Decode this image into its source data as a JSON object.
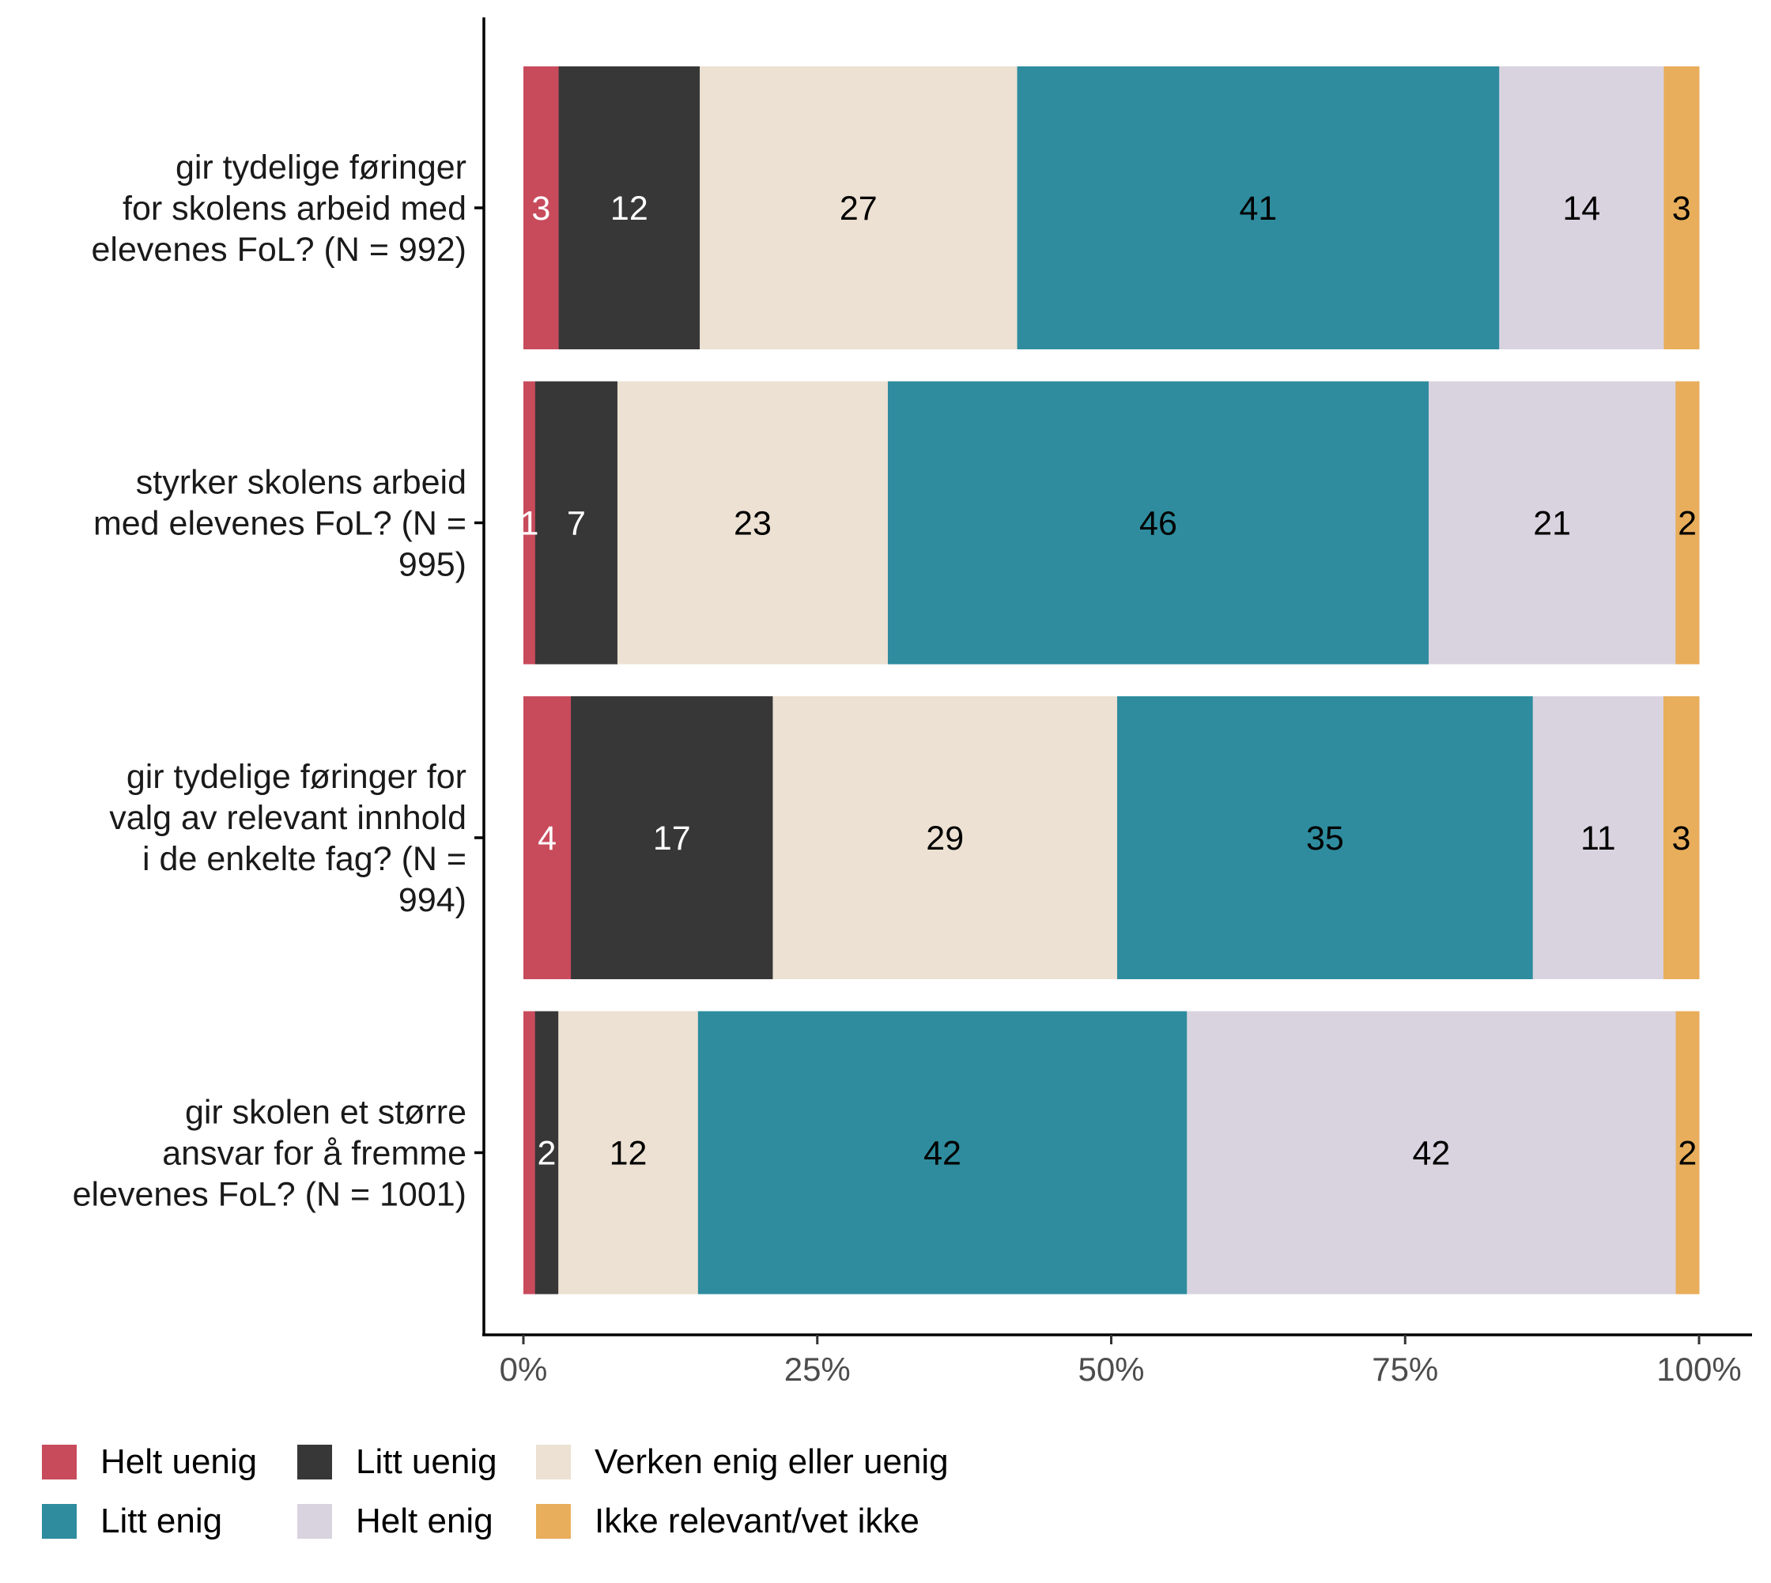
{
  "chart_data": {
    "type": "bar",
    "orientation": "horizontal",
    "stacked": true,
    "normalized": true,
    "title": "",
    "xlabel": "",
    "ylabel": "",
    "xlim": [
      0,
      100
    ],
    "x_ticks": [
      "0%",
      "25%",
      "50%",
      "75%",
      "100%"
    ],
    "x_tick_values": [
      0,
      25,
      50,
      75,
      100
    ],
    "grid": false,
    "legend_position": "bottom-left",
    "categories": [
      [
        "gir tydelige føringer",
        "for skolens arbeid med",
        "elevenes FoL? (N = 992)"
      ],
      [
        "styrker skolens arbeid",
        "med elevenes FoL? (N =",
        "995)"
      ],
      [
        "gir tydelige føringer for",
        "valg av relevant innhold",
        "i de enkelte fag? (N =",
        "994)"
      ],
      [
        "gir skolen et større",
        "ansvar for å fremme",
        "elevenes FoL? (N = 1001)"
      ]
    ],
    "series": [
      {
        "name": "Helt uenig",
        "color": "#C84B5C",
        "label_color": "#ffffff",
        "values": [
          3,
          1,
          4,
          1
        ],
        "labels": [
          "3",
          "1",
          "4",
          ""
        ]
      },
      {
        "name": "Litt uenig",
        "color": "#373737",
        "label_color": "#ffffff",
        "values": [
          12,
          7,
          17,
          2
        ],
        "labels": [
          "12",
          "7",
          "17",
          "2"
        ]
      },
      {
        "name": "Verken enig eller uenig",
        "color": "#ECE1D2",
        "label_color": "#000000",
        "values": [
          27,
          23,
          29,
          12
        ],
        "labels": [
          "27",
          "23",
          "29",
          "12"
        ]
      },
      {
        "name": "Litt enig",
        "color": "#2E8C9E",
        "label_color": "#000000",
        "values": [
          41,
          46,
          35,
          42
        ],
        "labels": [
          "41",
          "46",
          "35",
          "42"
        ]
      },
      {
        "name": "Helt enig",
        "color": "#D9D3E0",
        "label_color": "#000000",
        "values": [
          14,
          21,
          11,
          42
        ],
        "labels": [
          "14",
          "21",
          "11",
          "42"
        ]
      },
      {
        "name": "Ikke relevant/vet ikke",
        "color": "#E8AE5B",
        "label_color": "#000000",
        "values": [
          3,
          2,
          3,
          2
        ],
        "labels": [
          "3",
          "2",
          "3",
          "2"
        ]
      }
    ]
  },
  "legend": {
    "items": [
      {
        "label": "Helt uenig",
        "color": "#C84B5C"
      },
      {
        "label": "Litt uenig",
        "color": "#373737"
      },
      {
        "label": "Verken enig eller uenig",
        "color": "#ECE1D2"
      },
      {
        "label": "Litt enig",
        "color": "#2E8C9E"
      },
      {
        "label": "Helt enig",
        "color": "#D9D3E0"
      },
      {
        "label": "Ikke relevant/vet ikke",
        "color": "#E8AE5B"
      }
    ]
  }
}
